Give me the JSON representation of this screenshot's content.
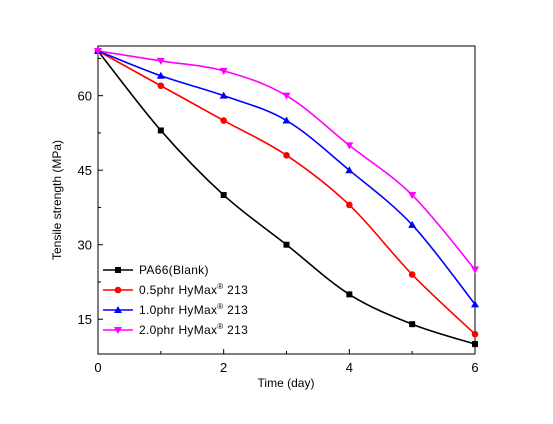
{
  "chart_data": {
    "type": "line",
    "title": "",
    "xlabel": "Time (day)",
    "ylabel": "Tensile strength (MPa)",
    "xlim": [
      0,
      6
    ],
    "ylim": [
      8,
      70
    ],
    "x_ticks": [
      0,
      2,
      4,
      6
    ],
    "y_ticks": [
      15,
      30,
      45,
      60
    ],
    "x_tick_labels": [
      "0",
      "2",
      "4",
      "6"
    ],
    "y_tick_labels": [
      "15",
      "30",
      "45",
      "60"
    ],
    "grid": false,
    "legend_position": "bottom-left",
    "x": [
      0,
      1,
      2,
      3,
      4,
      5,
      6
    ],
    "series": [
      {
        "name": "PA66(Blank)",
        "name_parts": [
          "PA66(Blank)"
        ],
        "color": "#000000",
        "marker": "square",
        "values": [
          69,
          53,
          40,
          30,
          20,
          14,
          10
        ]
      },
      {
        "name": "0.5phr HyMax® 213",
        "name_parts": [
          "0.5phr HyMax",
          "®",
          " 213"
        ],
        "color": "#ff0000",
        "marker": "circle",
        "values": [
          69,
          62,
          55,
          48,
          38,
          24,
          12
        ]
      },
      {
        "name": "1.0phr HyMax® 213",
        "name_parts": [
          "1.0phr HyMax",
          "®",
          " 213"
        ],
        "color": "#0000ff",
        "marker": "triangle-up",
        "values": [
          69,
          64,
          60,
          55,
          45,
          34,
          18
        ]
      },
      {
        "name": "2.0phr HyMax® 213",
        "name_parts": [
          "2.0phr HyMax",
          "®",
          " 213"
        ],
        "color": "#ff00ff",
        "marker": "triangle-down",
        "values": [
          69,
          67,
          65,
          60,
          50,
          40,
          25
        ]
      }
    ]
  }
}
